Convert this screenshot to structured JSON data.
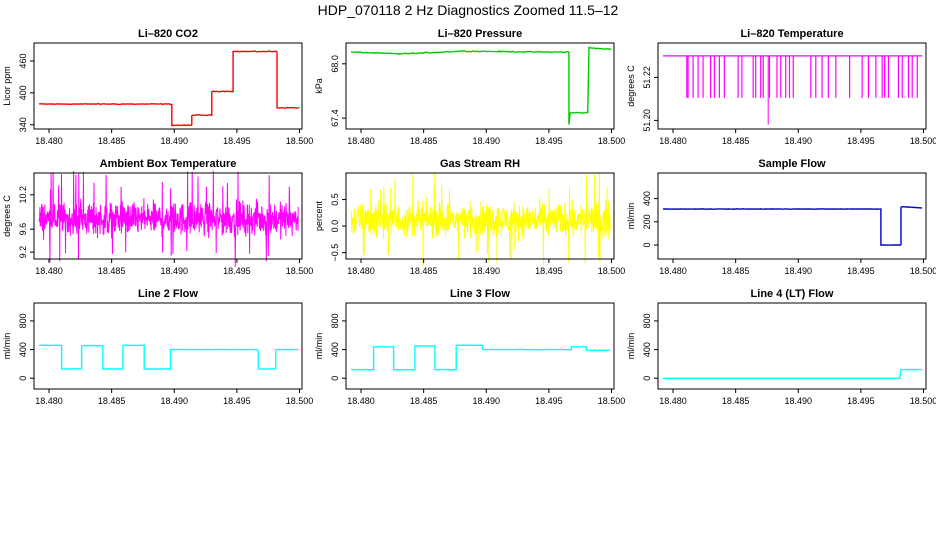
{
  "figure": {
    "title": "HDP_070118  2 Hz Diagnostics Zoomed 11.5–12"
  },
  "chart_data": [
    {
      "id": "co2",
      "type": "line",
      "title": "Li–820 CO2",
      "ylabel": "Licor ppm",
      "color": "#ff0000",
      "xlim": [
        18.4788,
        18.5002
      ],
      "ylim": [
        332,
        494
      ],
      "xticks": [
        "18.480",
        "18.485",
        "18.490",
        "18.495",
        "18.500"
      ],
      "xtick_values": [
        18.48,
        18.485,
        18.49,
        18.495,
        18.5
      ],
      "yticks": [
        "340",
        "400",
        "460"
      ],
      "ytick_values": [
        340,
        400,
        460
      ],
      "series": [
        {
          "name": "CO2",
          "x": [
            18.4792,
            18.4898,
            18.4898,
            18.4914,
            18.4914,
            18.493,
            18.493,
            18.4947,
            18.4947,
            18.4982,
            18.4982,
            18.5
          ],
          "y": [
            379,
            379,
            339,
            339,
            358,
            358,
            403,
            403,
            478,
            478,
            372,
            372
          ],
          "noise": 1.2
        }
      ]
    },
    {
      "id": "pressure",
      "type": "line",
      "title": "Li–820 Pressure",
      "ylabel": "kPa",
      "color": "#00cc00",
      "xlim": [
        18.4788,
        18.5002
      ],
      "ylim": [
        67.28,
        68.23
      ],
      "xticks": [
        "18.480",
        "18.485",
        "18.490",
        "18.495",
        "18.500"
      ],
      "xtick_values": [
        18.48,
        18.485,
        18.49,
        18.495,
        18.5
      ],
      "yticks": [
        "67.4",
        "68.0"
      ],
      "ytick_values": [
        67.4,
        68.0
      ],
      "series": [
        {
          "name": "Pressure",
          "x": [
            18.4792,
            18.483,
            18.485,
            18.488,
            18.495,
            18.4966,
            18.4966,
            18.4967,
            18.4981,
            18.4982,
            18.4982,
            18.4988,
            18.5
          ],
          "y": [
            68.13,
            68.11,
            68.12,
            68.14,
            68.13,
            68.13,
            67.33,
            67.46,
            67.46,
            68.18,
            68.18,
            68.17,
            68.16
          ],
          "noise": 0.008
        }
      ]
    },
    {
      "id": "temperature",
      "type": "line",
      "title": "Li–820 Temperature",
      "ylabel": "degrees C",
      "color": "#ff00ff",
      "xlim": [
        18.4788,
        18.5002
      ],
      "ylim": [
        51.196,
        51.236
      ],
      "xticks": [
        "18.480",
        "18.485",
        "18.490",
        "18.495",
        "18.500"
      ],
      "xtick_values": [
        18.48,
        18.485,
        18.49,
        18.495,
        18.5
      ],
      "yticks": [
        "51.20",
        "51.22"
      ],
      "ytick_values": [
        51.2,
        51.22
      ],
      "baseline": 51.23,
      "dip_value": 51.2105,
      "dips": [
        18.4811,
        18.4812,
        18.4816,
        18.482,
        18.4824,
        18.483,
        18.4833,
        18.4837,
        18.4841,
        18.4852,
        18.4855,
        18.4864,
        18.4866,
        18.487,
        18.4872,
        18.4877,
        18.4883,
        18.4886,
        18.489,
        18.4893,
        18.4896,
        18.491,
        18.4914,
        18.4919,
        18.4924,
        18.493,
        18.4941,
        18.4951,
        18.4956,
        18.4962,
        18.4967,
        18.4969,
        18.4972,
        18.498,
        18.4983,
        18.4988,
        18.4991,
        18.4995
      ],
      "deep_dip": {
        "x": 18.4876,
        "y": 51.198
      }
    },
    {
      "id": "ambient",
      "type": "line",
      "title": "Ambient Box Temperature",
      "ylabel": "degrees C",
      "color": "#ff00ff",
      "xlim": [
        18.4788,
        18.5002
      ],
      "ylim": [
        9.08,
        10.58
      ],
      "xticks": [
        "18.480",
        "18.485",
        "18.490",
        "18.495",
        "18.500"
      ],
      "xtick_values": [
        18.48,
        18.485,
        18.49,
        18.495,
        18.5
      ],
      "yticks": [
        "9.2",
        "9.6",
        "10.2"
      ],
      "ytick_values": [
        9.2,
        9.6,
        10.2
      ],
      "series": [
        {
          "name": "Ambient",
          "mean": 9.78,
          "spread": 0.42,
          "x_start": 18.4792,
          "x_end": 18.4999
        }
      ]
    },
    {
      "id": "rh",
      "type": "line",
      "title": "Gas Stream RH",
      "ylabel": "percent",
      "color": "#ffff00",
      "xlim": [
        18.4788,
        18.5002
      ],
      "ylim": [
        -0.62,
        1.0
      ],
      "xticks": [
        "18.480",
        "18.485",
        "18.490",
        "18.495",
        "18.500"
      ],
      "xtick_values": [
        18.48,
        18.485,
        18.49,
        18.495,
        18.5
      ],
      "yticks": [
        "−0.5",
        "0.0",
        "0.5"
      ],
      "ytick_values": [
        -0.5,
        0.0,
        0.5
      ],
      "series": [
        {
          "name": "RH",
          "mean": 0.12,
          "spread": 0.45,
          "x_start": 18.4792,
          "x_end": 18.4999
        }
      ]
    },
    {
      "id": "sample_flow",
      "type": "line",
      "title": "Sample Flow",
      "ylabel": "ml/min",
      "color": "#0000cc",
      "xlim": [
        18.4788,
        18.5002
      ],
      "ylim": [
        -120,
        620
      ],
      "xticks": [
        "18.480",
        "18.485",
        "18.490",
        "18.495",
        "18.500"
      ],
      "xtick_values": [
        18.48,
        18.485,
        18.49,
        18.495,
        18.5
      ],
      "yticks": [
        "0",
        "200",
        "400"
      ],
      "ytick_values": [
        0,
        200,
        400
      ],
      "series": [
        {
          "name": "Sample",
          "x": [
            18.4792,
            18.4966,
            18.4966,
            18.4982,
            18.4982,
            18.4999
          ],
          "y": [
            310,
            310,
            0,
            0,
            330,
            320
          ],
          "noise": 3
        }
      ]
    },
    {
      "id": "line2",
      "type": "line",
      "title": "Line 2 Flow",
      "ylabel": "ml/min",
      "color": "#00ffff",
      "xlim": [
        18.4788,
        18.5002
      ],
      "ylim": [
        -150,
        1050
      ],
      "xticks": [
        "18.480",
        "18.485",
        "18.490",
        "18.495",
        "18.500"
      ],
      "xtick_values": [
        18.48,
        18.485,
        18.49,
        18.495,
        18.5
      ],
      "yticks": [
        "0",
        "400",
        "800"
      ],
      "ytick_values": [
        0,
        400,
        800
      ],
      "series": [
        {
          "name": "Line2",
          "x": [
            18.4792,
            18.481,
            18.481,
            18.4826,
            18.4826,
            18.4843,
            18.4843,
            18.4859,
            18.4859,
            18.4876,
            18.4876,
            18.4897,
            18.4897,
            18.4967,
            18.4967,
            18.4981,
            18.4981,
            18.4999
          ],
          "y": [
            460,
            460,
            130,
            130,
            455,
            455,
            130,
            130,
            460,
            460,
            130,
            130,
            400,
            400,
            130,
            130,
            400,
            400
          ],
          "noise": 4
        }
      ]
    },
    {
      "id": "line3",
      "type": "line",
      "title": "Line 3 Flow",
      "ylabel": "ml/min",
      "color": "#00ffff",
      "xlim": [
        18.4788,
        18.5002
      ],
      "ylim": [
        -150,
        1050
      ],
      "xticks": [
        "18.480",
        "18.485",
        "18.490",
        "18.495",
        "18.500"
      ],
      "xtick_values": [
        18.48,
        18.485,
        18.49,
        18.495,
        18.5
      ],
      "yticks": [
        "0",
        "400",
        "800"
      ],
      "ytick_values": [
        0,
        400,
        800
      ],
      "series": [
        {
          "name": "Line3",
          "x": [
            18.4792,
            18.481,
            18.481,
            18.4826,
            18.4826,
            18.4843,
            18.4843,
            18.4859,
            18.4859,
            18.4876,
            18.4876,
            18.4897,
            18.4897,
            18.4968,
            18.4968,
            18.498,
            18.498,
            18.4999
          ],
          "y": [
            120,
            120,
            440,
            440,
            120,
            120,
            450,
            450,
            120,
            120,
            460,
            460,
            400,
            400,
            440,
            440,
            390,
            390
          ],
          "noise": 5
        }
      ]
    },
    {
      "id": "line4",
      "type": "line",
      "title": "Line 4 (LT) Flow",
      "ylabel": "ml/min",
      "color": "#00ffff",
      "xlim": [
        18.4788,
        18.5002
      ],
      "ylim": [
        -150,
        1050
      ],
      "xticks": [
        "18.480",
        "18.485",
        "18.490",
        "18.495",
        "18.500"
      ],
      "xtick_values": [
        18.48,
        18.485,
        18.49,
        18.495,
        18.5
      ],
      "yticks": [
        "0",
        "400",
        "800"
      ],
      "ytick_values": [
        0,
        400,
        800
      ],
      "series": [
        {
          "name": "Line4",
          "x": [
            18.4792,
            18.4981,
            18.4982,
            18.4999
          ],
          "y": [
            0,
            0,
            120,
            120
          ],
          "noise": 0
        }
      ]
    }
  ]
}
